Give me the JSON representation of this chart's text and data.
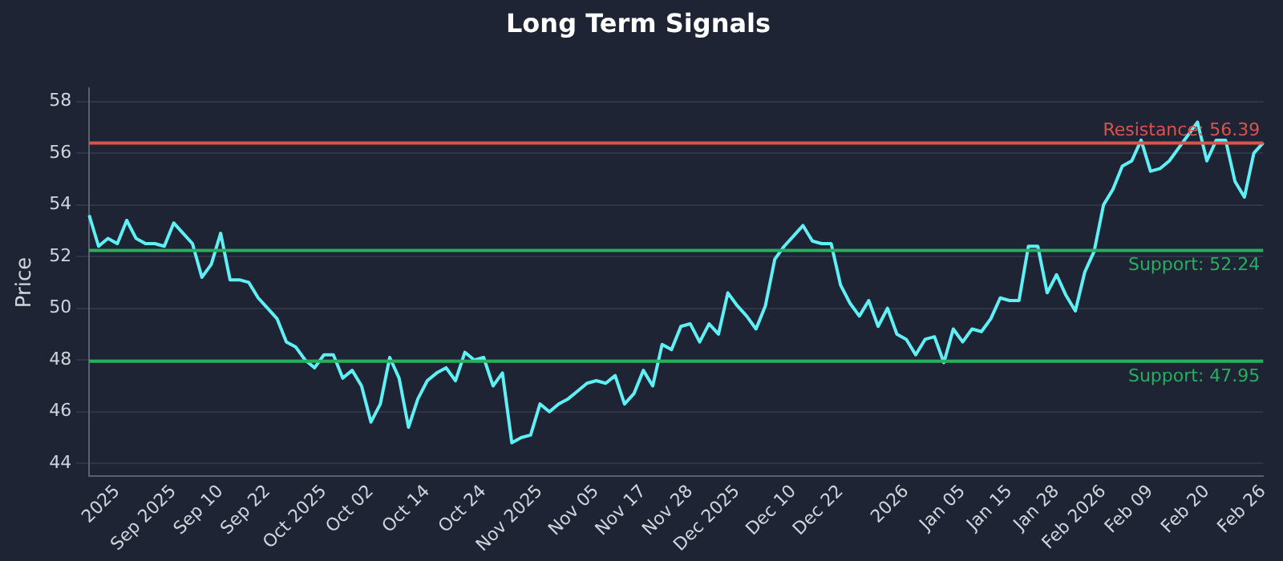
{
  "chart_data": {
    "type": "line",
    "title": "Long Term Signals",
    "ylabel": "Price",
    "categories": [
      null,
      null,
      null,
      "2025",
      null,
      null,
      null,
      null,
      null,
      "Sep 2025",
      null,
      null,
      null,
      null,
      "Sep 10",
      null,
      null,
      null,
      null,
      "Sep 22",
      null,
      null,
      null,
      null,
      null,
      "Oct 2025",
      null,
      null,
      null,
      null,
      "Oct 02",
      null,
      null,
      null,
      null,
      null,
      "Oct 14",
      null,
      null,
      null,
      null,
      null,
      "Oct 24",
      null,
      null,
      null,
      null,
      null,
      "Nov 2025",
      null,
      null,
      null,
      null,
      null,
      "Nov 05",
      null,
      null,
      null,
      null,
      "Nov 17",
      null,
      null,
      null,
      null,
      "Nov 28",
      null,
      null,
      null,
      null,
      "Dec 2025",
      null,
      null,
      null,
      null,
      null,
      "Dec 10",
      null,
      null,
      null,
      null,
      "Dec 22",
      null,
      null,
      null,
      null,
      null,
      null,
      "2026",
      null,
      null,
      null,
      null,
      null,
      "Jan 05",
      null,
      null,
      null,
      null,
      "Jan 15",
      null,
      null,
      null,
      null,
      "Jan 28",
      null,
      null,
      null,
      null,
      "Feb 2026",
      null,
      null,
      null,
      null,
      "Feb 09",
      null,
      null,
      null,
      null,
      null,
      "Feb 20",
      null,
      null,
      null,
      null,
      null,
      "Feb 26"
    ],
    "series": [
      {
        "color": "#5ff0f5",
        "values": [
          53.6,
          52.4,
          52.7,
          52.5,
          53.4,
          52.7,
          52.5,
          52.5,
          52.4,
          53.3,
          52.9,
          52.5,
          51.2,
          51.7,
          52.9,
          51.1,
          51.1,
          51.0,
          50.4,
          50.0,
          49.6,
          48.7,
          48.5,
          48.0,
          47.7,
          48.2,
          48.2,
          47.3,
          47.6,
          47.0,
          45.6,
          46.3,
          48.1,
          47.3,
          45.4,
          46.5,
          47.2,
          47.5,
          47.7,
          47.2,
          48.3,
          48.0,
          48.1,
          47.0,
          47.5,
          44.8,
          45.0,
          45.1,
          46.3,
          46.0,
          46.3,
          46.5,
          46.8,
          47.1,
          47.2,
          47.1,
          47.4,
          46.3,
          46.7,
          47.6,
          47.0,
          48.6,
          48.4,
          49.3,
          49.4,
          48.7,
          49.4,
          49.0,
          50.6,
          50.1,
          49.7,
          49.2,
          50.1,
          51.9,
          52.4,
          52.8,
          53.2,
          52.6,
          52.5,
          52.5,
          50.9,
          50.2,
          49.7,
          50.3,
          49.3,
          50.0,
          49.0,
          48.8,
          48.2,
          48.8,
          48.9,
          47.9,
          49.2,
          48.7,
          49.2,
          49.1,
          49.6,
          50.4,
          50.3,
          50.3,
          52.4,
          52.4,
          50.6,
          51.3,
          50.5,
          49.9,
          51.4,
          52.2,
          54.0,
          54.6,
          55.5,
          55.7,
          56.5,
          55.3,
          55.4,
          55.7,
          56.2,
          56.7,
          57.2,
          55.7,
          56.5,
          56.5,
          54.9,
          54.3,
          56.0,
          56.4
        ]
      }
    ],
    "ylim": [
      43.5,
      58.5
    ],
    "yticks": [
      44,
      46,
      48,
      50,
      52,
      54,
      56,
      58
    ],
    "grid": "y",
    "legend": false,
    "marker": "none",
    "line_style": "solid",
    "ref_lines": [
      {
        "axis": "y",
        "value": 56.39,
        "label": "Resistance: 56.39",
        "color": "#d9534f"
      },
      {
        "axis": "y",
        "value": 52.24,
        "label": "Support: 52.24",
        "color": "#27ae60"
      },
      {
        "axis": "y",
        "value": 47.95,
        "label": "Support: 47.95",
        "color": "#27ae60"
      }
    ]
  }
}
